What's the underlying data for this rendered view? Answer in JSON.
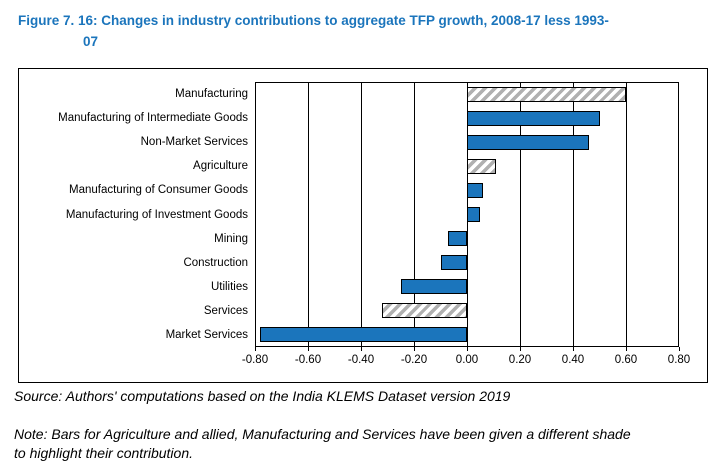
{
  "title": {
    "line1": "Figure 7. 16: Changes in industry contributions to aggregate TFP growth, 2008-17 less 1993-",
    "line2": "07",
    "color": "#1b75bc"
  },
  "chart_data": {
    "type": "bar",
    "orientation": "horizontal",
    "title": "Figure 7. 16: Changes in industry contributions to aggregate TFP growth, 2008-17 less 1993-07",
    "categories": [
      "Manufacturing",
      "Manufacturing of Intermediate Goods",
      "Non-Market Services",
      "Agriculture",
      "Manufacturing of Consumer Goods",
      "Manufacturing of Investment Goods",
      "Mining",
      "Construction",
      "Utilities",
      "Services",
      "Market Services"
    ],
    "values": [
      0.6,
      0.5,
      0.46,
      0.11,
      0.06,
      0.05,
      -0.07,
      -0.1,
      -0.25,
      -0.32,
      -0.78
    ],
    "hatched": [
      true,
      false,
      false,
      true,
      false,
      false,
      false,
      false,
      false,
      true,
      false
    ],
    "hatched_categories": [
      "Manufacturing",
      "Agriculture",
      "Services"
    ],
    "xlim": [
      -0.8,
      0.8
    ],
    "xticks": [
      "-0.80",
      "-0.60",
      "-0.40",
      "-0.20",
      "0.00",
      "0.20",
      "0.40",
      "0.60",
      "0.80"
    ],
    "grid": true,
    "legend": false,
    "bar_color": "#1b75bc",
    "bar_border_color": "#000000",
    "hatch_bg_color": "#ffffff",
    "hatch_stripe_color": "#b0b0b0"
  },
  "source": "Source: Authors' computations based on the India KLEMS Dataset version 2019",
  "note": {
    "line1": "Note: Bars for Agriculture and allied, Manufacturing and Services have been given a different shade",
    "line2": "to highlight their contribution."
  }
}
